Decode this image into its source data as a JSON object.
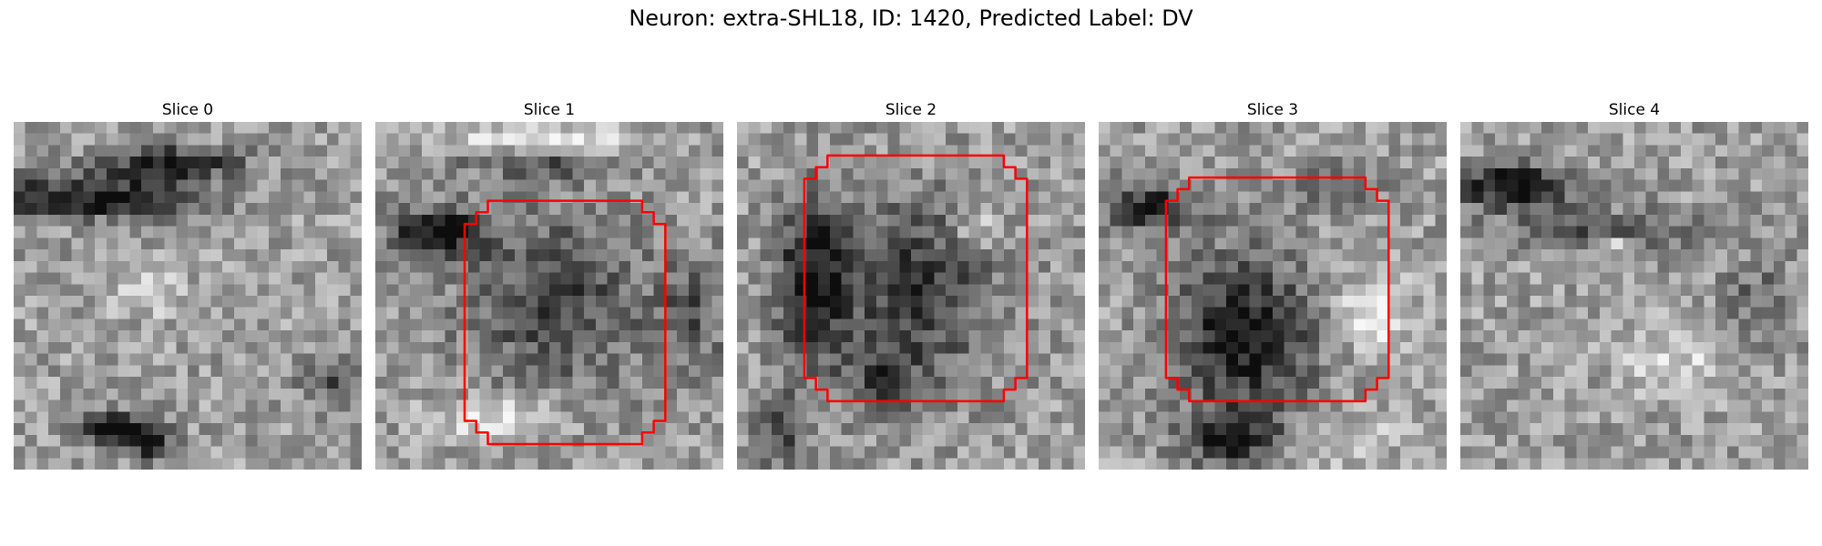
{
  "figure": {
    "title": "Neuron: extra-SHL18, ID: 1420, Predicted Label: DV"
  },
  "panels": [
    {
      "title": "Slice 0",
      "has_outline": false
    },
    {
      "title": "Slice 1",
      "has_outline": true
    },
    {
      "title": "Slice 2",
      "has_outline": true
    },
    {
      "title": "Slice 3",
      "has_outline": true
    },
    {
      "title": "Slice 4",
      "has_outline": false
    }
  ],
  "colors": {
    "outline": "#ff0000"
  },
  "image_style": "grayscale-pixelated"
}
